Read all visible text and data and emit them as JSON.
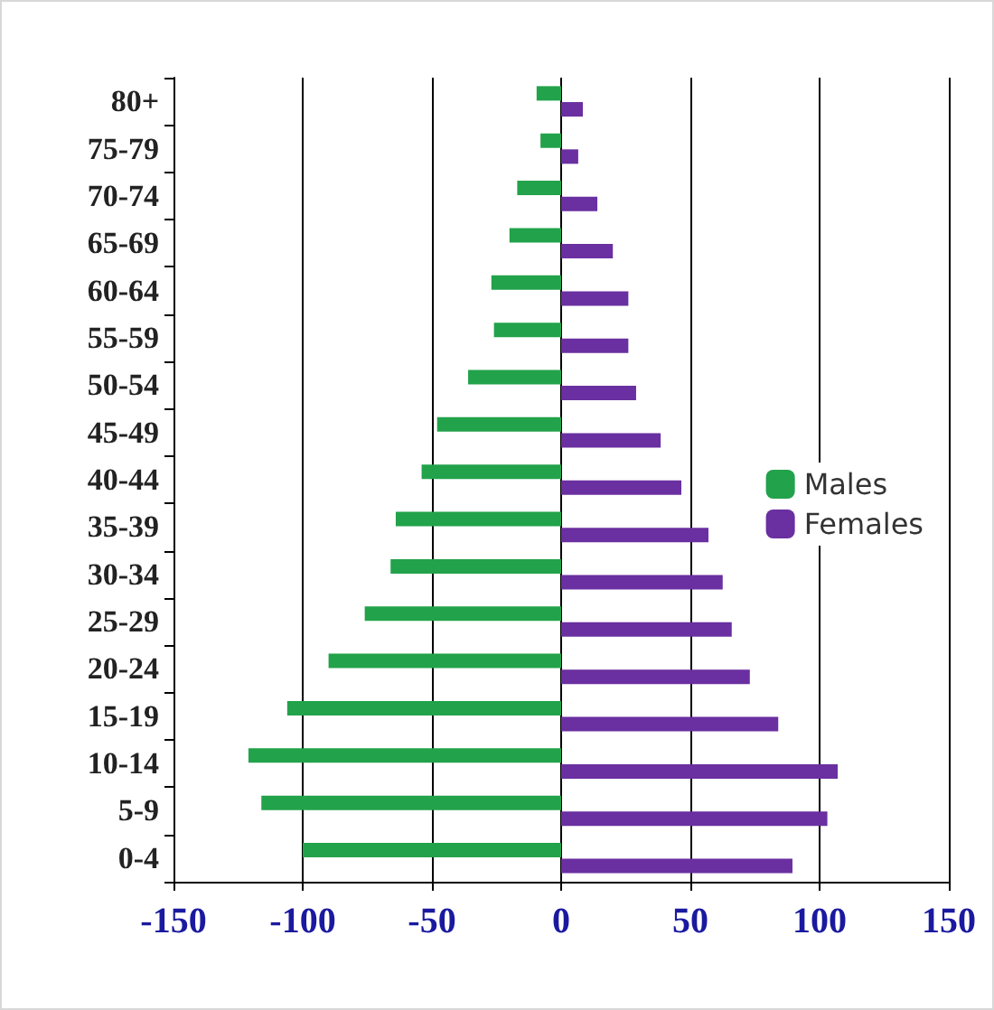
{
  "chart_data": {
    "type": "bar",
    "orientation": "horizontal",
    "categories": [
      "80+",
      "75-79",
      "70-74",
      "65-69",
      "60-64",
      "55-59",
      "50-54",
      "45-49",
      "40-44",
      "35-39",
      "30-34",
      "25-29",
      "20-24",
      "15-19",
      "10-14",
      "5-9",
      "0-4"
    ],
    "series": [
      {
        "name": "Males",
        "color": "#22a24a",
        "values": [
          -9.5,
          -8,
          -17,
          -20,
          -27,
          -26,
          -36,
          -48,
          -54,
          -64,
          -66,
          -76,
          -90,
          -106,
          -121,
          -116,
          -100
        ]
      },
      {
        "name": "Females",
        "color": "#6a2fa0",
        "values": [
          8.4,
          6.6,
          14,
          20,
          26,
          26,
          29,
          38.5,
          46.5,
          57,
          62.5,
          66,
          73,
          84,
          107,
          103,
          89.5
        ]
      }
    ],
    "xlim": [
      -150,
      150
    ],
    "xticks": [
      -150,
      -100,
      -50,
      0,
      50,
      100,
      150
    ],
    "grid": "x",
    "legend": "right"
  }
}
